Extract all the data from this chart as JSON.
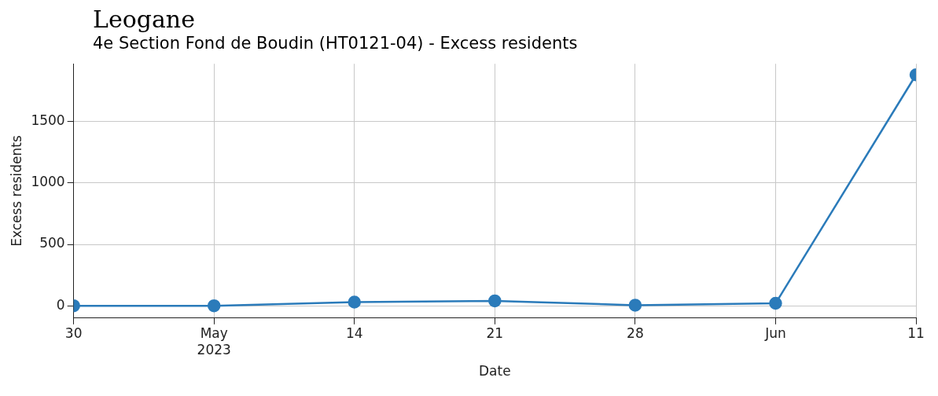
{
  "chart_data": {
    "type": "line",
    "title": "Leogane",
    "subtitle": "4e Section Fond de Boudin (HT0121-04) - Excess residents",
    "xlabel": "Date",
    "ylabel": "Excess residents",
    "x": [
      "2023-04-30",
      "2023-05-07",
      "2023-05-14",
      "2023-05-21",
      "2023-05-28",
      "2023-06-04",
      "2023-06-11"
    ],
    "series": [
      {
        "color": "#2b7bba",
        "values": [
          0,
          0,
          30,
          40,
          5,
          20,
          1880
        ]
      }
    ],
    "xlim": [
      "2023-04-30",
      "2023-06-11"
    ],
    "xticks": [
      {
        "value": "2023-04-30",
        "label": "30"
      },
      {
        "value": "2023-05-07",
        "label": "May 2023"
      },
      {
        "value": "2023-05-14",
        "label": "14"
      },
      {
        "value": "2023-05-21",
        "label": "21"
      },
      {
        "value": "2023-05-28",
        "label": "28"
      },
      {
        "value": "2023-06-04",
        "label": "Jun"
      },
      {
        "value": "2023-06-11",
        "label": "11"
      }
    ],
    "ylim": [
      -100,
      1970
    ],
    "yticks": [
      0,
      500,
      1000,
      1500
    ],
    "grid": true,
    "marker": "circle",
    "line_style": "solid",
    "legend": false
  }
}
